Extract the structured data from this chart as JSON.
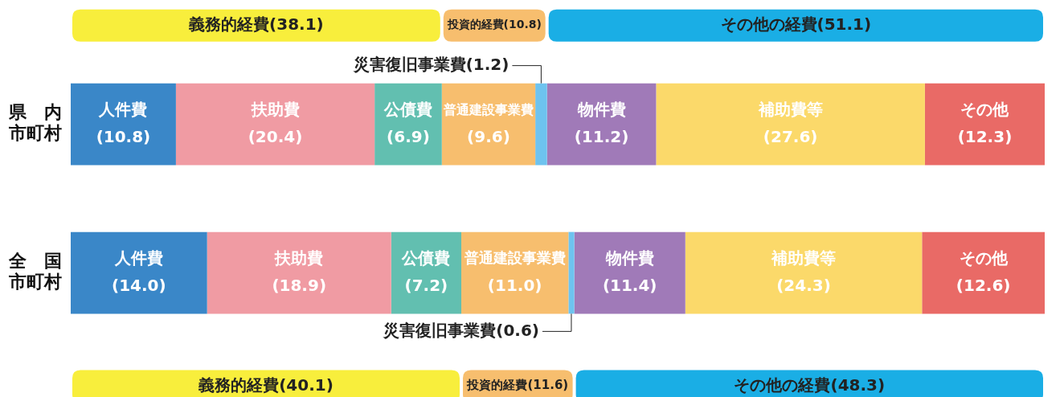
{
  "chart_data": {
    "type": "bar",
    "orientation": "horizontal",
    "stacked": true,
    "categories": [
      "県内市町村",
      "全国市町村"
    ],
    "series": [
      {
        "name": "人件費",
        "color": "#3a87c8",
        "values": [
          10.8,
          14.0
        ],
        "value_labels": [
          "(10.8)",
          "(14.0)"
        ]
      },
      {
        "name": "扶助費",
        "color": "#f09ba3",
        "values": [
          20.4,
          18.9
        ],
        "value_labels": [
          "(20.4)",
          "(18.9)"
        ]
      },
      {
        "name": "公債費",
        "color": "#62bfb0",
        "values": [
          6.9,
          7.2
        ],
        "value_labels": [
          "(6.9)",
          "(7.2)"
        ]
      },
      {
        "name": "普通建設事業費",
        "color": "#f7be6e",
        "values": [
          9.6,
          11.0
        ],
        "value_labels": [
          "(9.6)",
          "(11.0)"
        ]
      },
      {
        "name": "災害復旧事業費",
        "color": "#6ec3ef",
        "values": [
          1.2,
          0.6
        ],
        "value_labels": [
          "(1.2)",
          "(0.6)"
        ]
      },
      {
        "name": "物件費",
        "color": "#a07ab8",
        "values": [
          11.2,
          11.4
        ],
        "value_labels": [
          "(11.2)",
          "(11.4)"
        ]
      },
      {
        "name": "補助費等",
        "color": "#fbd96a",
        "values": [
          27.6,
          24.3
        ],
        "value_labels": [
          "(27.6)",
          "(24.3)"
        ]
      },
      {
        "name": "その他",
        "color": "#e96a66",
        "values": [
          12.3,
          12.6
        ],
        "value_labels": [
          "(12.3)",
          "(12.6)"
        ]
      }
    ],
    "xlim": [
      0,
      100
    ],
    "tick_labels": "y",
    "data_labels": true,
    "legend": false,
    "annotations": [
      "義務的経費(38.1)",
      "投資的経費(10.8)",
      "その他の経費(51.1)",
      "義務的経費(40.1)",
      "投資的経費(11.6)",
      "その他の経費(48.3)"
    ]
  }
}
